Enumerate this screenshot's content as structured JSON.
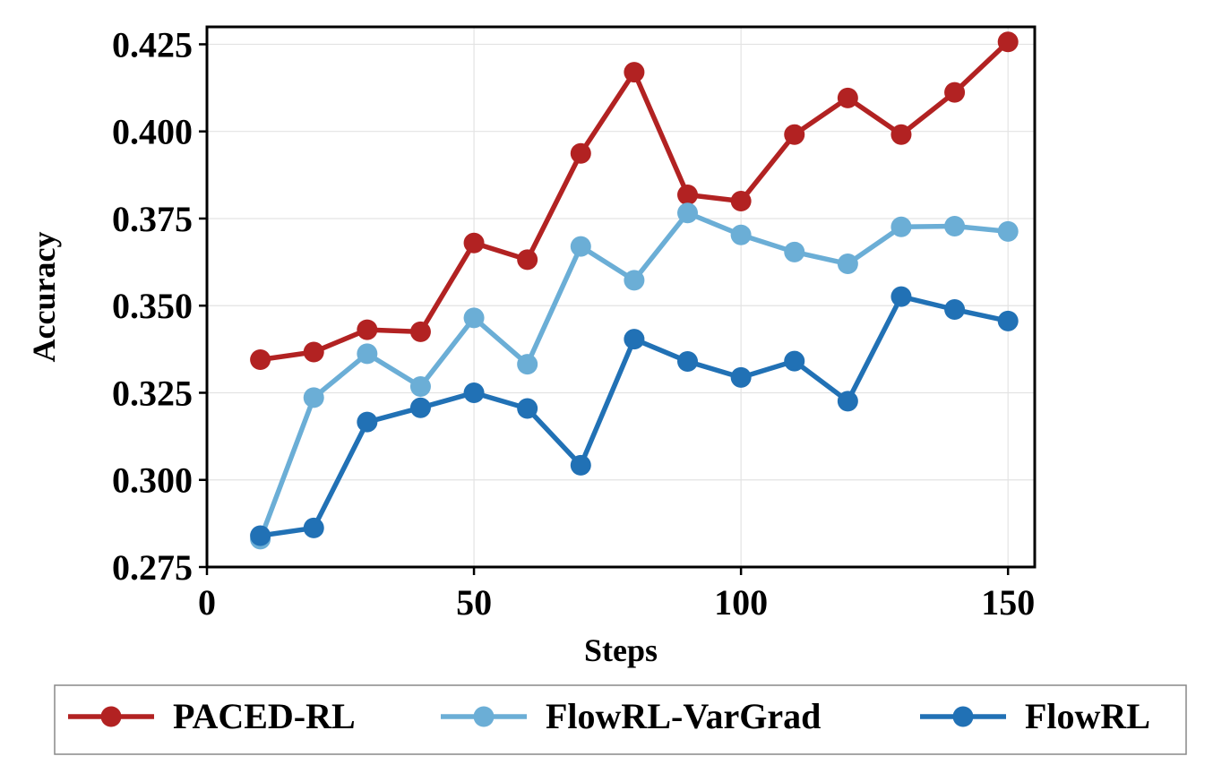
{
  "chart_data": {
    "type": "line",
    "title": "",
    "xlabel": "Steps",
    "ylabel": "Accuracy",
    "xlim": [
      0,
      155
    ],
    "ylim": [
      0.275,
      0.43
    ],
    "xticks": [
      0,
      50,
      100,
      150
    ],
    "xtick_labels": [
      "0",
      "50",
      "100",
      "150"
    ],
    "yticks": [
      0.275,
      0.3,
      0.325,
      0.35,
      0.375,
      0.4,
      0.425
    ],
    "ytick_labels": [
      "0.275",
      "0.300",
      "0.325",
      "0.350",
      "0.375",
      "0.400",
      "0.425"
    ],
    "grid": true,
    "legend_position": "bottom",
    "x": [
      10,
      20,
      30,
      40,
      50,
      60,
      70,
      80,
      90,
      100,
      110,
      120,
      130,
      140,
      150
    ],
    "series": [
      {
        "name": "PACED-RL",
        "color": "#b22222",
        "values": [
          0.3345,
          0.3367,
          0.3431,
          0.3425,
          0.368,
          0.3632,
          0.3937,
          0.417,
          0.3818,
          0.38,
          0.3991,
          0.4096,
          0.3991,
          0.4112,
          0.4257
        ]
      },
      {
        "name": "FlowRL-VarGrad",
        "color": "#6baed6",
        "values": [
          0.283,
          0.3236,
          0.3362,
          0.3268,
          0.3465,
          0.3332,
          0.367,
          0.3573,
          0.3766,
          0.3703,
          0.3654,
          0.362,
          0.3726,
          0.3728,
          0.3713
        ]
      },
      {
        "name": "FlowRL",
        "color": "#2171b5",
        "values": [
          0.284,
          0.2862,
          0.3166,
          0.3207,
          0.325,
          0.3205,
          0.3042,
          0.3404,
          0.334,
          0.3294,
          0.3341,
          0.3226,
          0.3526,
          0.3489,
          0.3456
        ]
      }
    ]
  }
}
